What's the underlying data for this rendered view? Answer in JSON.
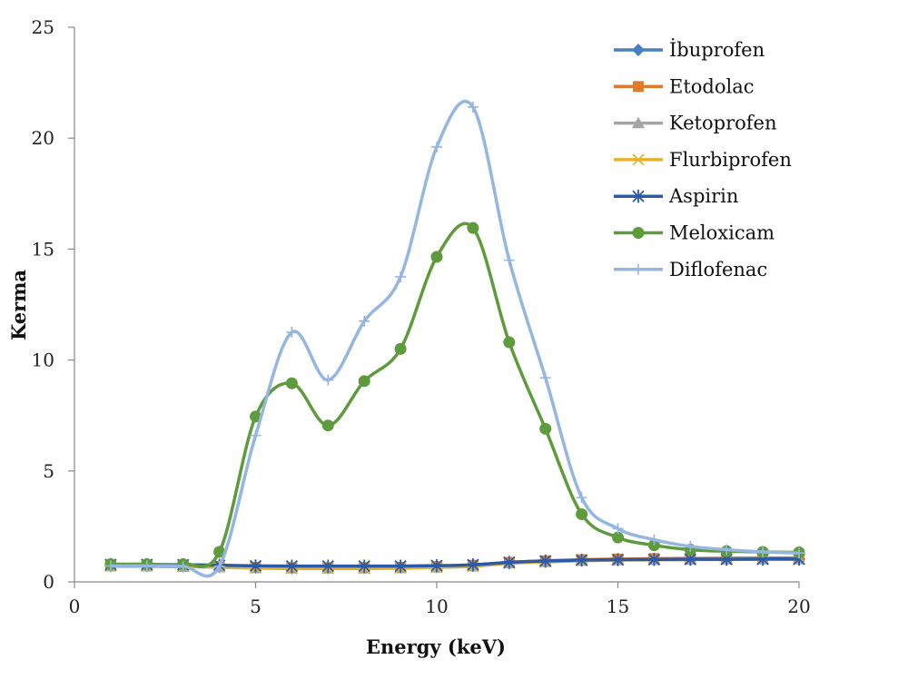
{
  "chart_data": {
    "type": "line",
    "title": "",
    "xlabel": "Energy (keV)",
    "ylabel": "Kerma",
    "xlim": [
      0,
      20
    ],
    "ylim": [
      0,
      25
    ],
    "xticks": [
      "0",
      "5",
      "10",
      "15",
      "20"
    ],
    "yticks": [
      "0",
      "5",
      "10",
      "15",
      "20",
      "25"
    ],
    "grid": false,
    "legend_position": "top-right",
    "x": [
      1,
      2,
      3,
      4,
      5,
      6,
      7,
      8,
      9,
      10,
      11,
      12,
      13,
      14,
      15,
      16,
      17,
      18,
      19,
      20
    ],
    "series": [
      {
        "name": "İbuprofen",
        "color": "#4a7fc0",
        "marker": "diamond",
        "values": [
          0.72,
          0.72,
          0.7,
          0.68,
          0.65,
          0.62,
          0.62,
          0.63,
          0.65,
          0.67,
          0.72,
          0.86,
          0.92,
          0.97,
          0.99,
          1.0,
          1.01,
          1.02,
          1.03,
          1.03
        ]
      },
      {
        "name": "Etodolac",
        "color": "#e07a2e",
        "marker": "square",
        "values": [
          0.74,
          0.74,
          0.72,
          0.7,
          0.66,
          0.64,
          0.64,
          0.65,
          0.66,
          0.69,
          0.75,
          0.88,
          0.95,
          1.0,
          1.03,
          1.05,
          1.06,
          1.07,
          1.08,
          1.08
        ]
      },
      {
        "name": "Ketoprofen",
        "color": "#a5a5a5",
        "marker": "triangle",
        "values": [
          0.7,
          0.7,
          0.68,
          0.66,
          0.62,
          0.6,
          0.6,
          0.6,
          0.62,
          0.65,
          0.7,
          0.84,
          0.9,
          0.95,
          0.98,
          0.99,
          1.0,
          1.01,
          1.02,
          1.02
        ]
      },
      {
        "name": "Flurbiprofen",
        "color": "#e6b428",
        "marker": "x",
        "values": [
          0.72,
          0.72,
          0.7,
          0.68,
          0.64,
          0.62,
          0.62,
          0.62,
          0.64,
          0.66,
          0.71,
          0.85,
          0.91,
          0.96,
          0.99,
          1.0,
          1.01,
          1.02,
          1.02,
          1.02
        ]
      },
      {
        "name": "Aspirin",
        "color": "#2b5aa8",
        "marker": "star",
        "values": [
          0.78,
          0.78,
          0.77,
          0.75,
          0.72,
          0.71,
          0.71,
          0.71,
          0.71,
          0.73,
          0.77,
          0.88,
          0.94,
          0.98,
          1.0,
          1.01,
          1.02,
          1.02,
          1.03,
          1.03
        ]
      },
      {
        "name": "Meloxicam",
        "color": "#5e9b3c",
        "marker": "circle",
        "values": [
          0.8,
          0.8,
          0.8,
          1.35,
          7.45,
          8.95,
          7.05,
          9.05,
          10.5,
          14.65,
          15.95,
          10.8,
          6.9,
          3.05,
          2.0,
          1.65,
          1.45,
          1.38,
          1.35,
          1.33
        ]
      },
      {
        "name": "Diflofenac",
        "color": "#94b6e0",
        "marker": "plus",
        "values": [
          0.72,
          0.72,
          0.7,
          0.7,
          6.6,
          11.25,
          9.1,
          11.75,
          13.75,
          19.6,
          21.4,
          14.5,
          9.2,
          3.8,
          2.4,
          1.9,
          1.6,
          1.45,
          1.35,
          1.3
        ]
      }
    ]
  }
}
